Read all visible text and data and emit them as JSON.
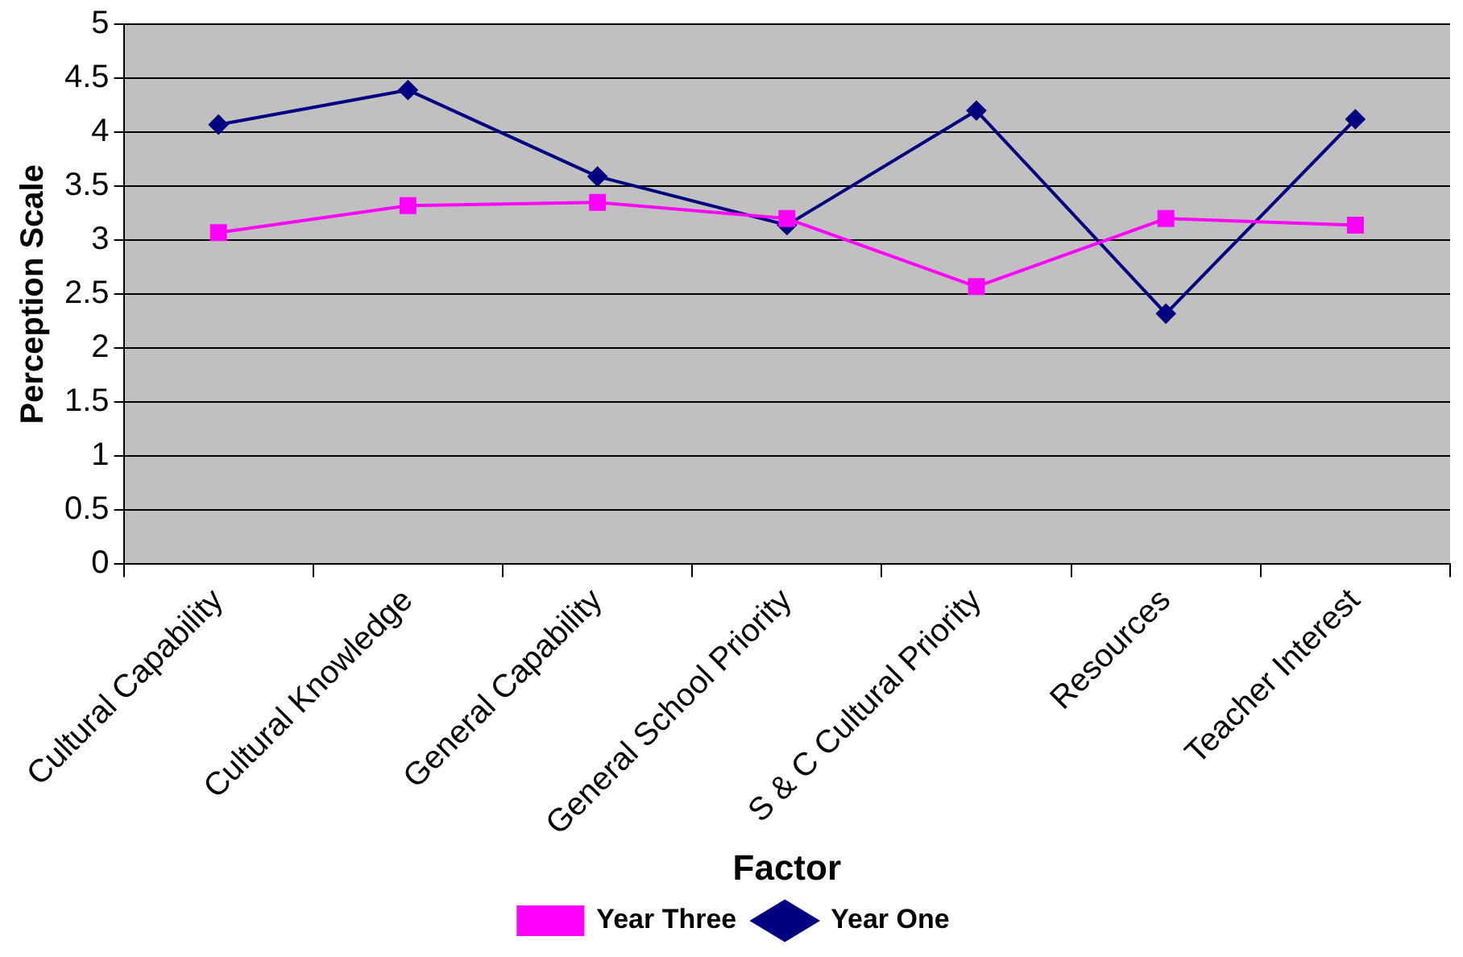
{
  "chart_data": {
    "type": "line",
    "xlabel": "Factor",
    "ylabel": "Perception Scale",
    "categories": [
      "Cultural Capability",
      "Cultural Knowledge",
      "General Capability",
      "General School Priority",
      "S & C Cultural Priority",
      "Resources",
      "Teacher Interest"
    ],
    "series": [
      {
        "name": "Year One",
        "color": "#000080",
        "marker": "diamond",
        "values": [
          4.07,
          4.39,
          3.59,
          3.14,
          4.2,
          2.32,
          4.12
        ]
      },
      {
        "name": "Year Three",
        "color": "#ff00ff",
        "marker": "square",
        "values": [
          3.07,
          3.32,
          3.35,
          3.2,
          2.57,
          3.2,
          3.14
        ]
      }
    ],
    "ylim": [
      0,
      5
    ],
    "yticks": [
      0,
      0.5,
      1,
      1.5,
      2,
      2.5,
      3,
      3.5,
      4,
      4.5,
      5
    ],
    "grid": "y",
    "legend": "bottom"
  }
}
